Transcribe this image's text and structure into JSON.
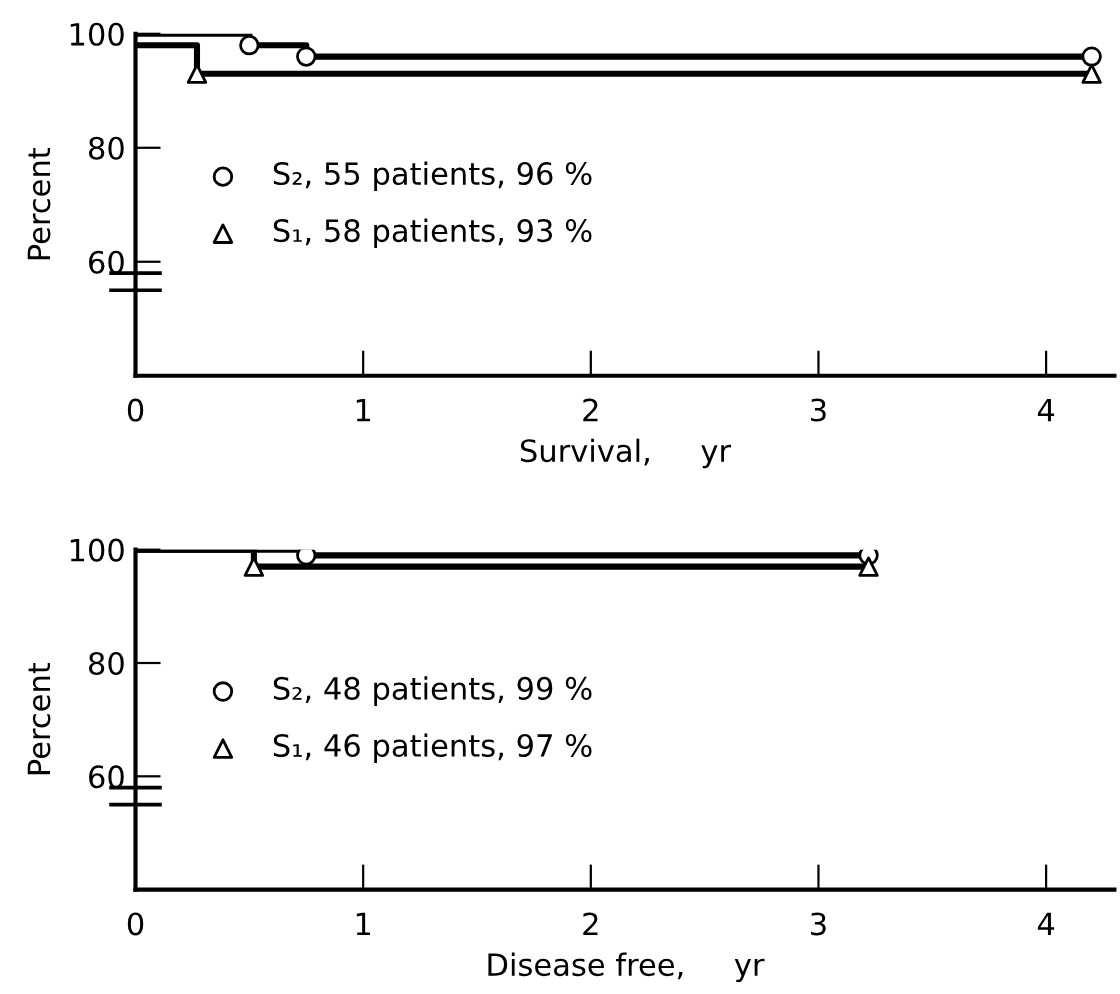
{
  "chart_data": [
    {
      "type": "step",
      "xlabel": "Survival,     yr",
      "ylabel": "Percent",
      "xlim": [
        0,
        4.3
      ],
      "xticks": [
        0,
        1,
        2,
        3,
        4
      ],
      "ylim": [
        40,
        100
      ],
      "yticks": [
        60,
        80,
        100
      ],
      "grid": false,
      "legend": "left",
      "line_style": "solid",
      "series": [
        {
          "color": "#000000",
          "x": [
            0,
            0.5,
            0.75,
            4.2
          ],
          "values": [
            100,
            98,
            96,
            96
          ]
        },
        {
          "color": "#000000",
          "x": [
            0,
            0.27,
            4.2
          ],
          "values": [
            98,
            93,
            93
          ]
        },
        {
          "type": "scatter",
          "name": "S₂, 55 patients, 96 %",
          "marker": "circle",
          "color": "#000000",
          "x": [
            0.5,
            0.75,
            4.2
          ],
          "values": [
            98,
            96,
            96
          ]
        },
        {
          "type": "scatter",
          "name": "S₁, 58 patients, 93 %",
          "marker": "triangle",
          "color": "#000000",
          "x": [
            0.27,
            4.2
          ],
          "values": [
            93,
            93
          ]
        }
      ]
    },
    {
      "type": "step",
      "xlabel": "Disease free,     yr",
      "ylabel": "Percent",
      "xlim": [
        0,
        4.3
      ],
      "xticks": [
        0,
        1,
        2,
        3,
        4
      ],
      "ylim": [
        40,
        100
      ],
      "yticks": [
        60,
        80,
        100
      ],
      "grid": false,
      "legend": "left",
      "line_style": "solid",
      "series": [
        {
          "color": "#000000",
          "x": [
            0,
            0.75,
            3.22
          ],
          "values": [
            100,
            99,
            99
          ]
        },
        {
          "color": "#000000",
          "x": [
            0,
            0.52,
            3.22
          ],
          "values": [
            100,
            97,
            97
          ]
        },
        {
          "type": "scatter",
          "name": "S₂, 48 patients, 99 %",
          "marker": "circle",
          "color": "#000000",
          "x": [
            0.75,
            3.22
          ],
          "values": [
            99,
            99
          ]
        },
        {
          "type": "scatter",
          "name": "S₁, 46 patients, 97 %",
          "marker": "triangle",
          "color": "#000000",
          "x": [
            0.52,
            3.22
          ],
          "values": [
            97,
            97
          ]
        }
      ]
    }
  ]
}
